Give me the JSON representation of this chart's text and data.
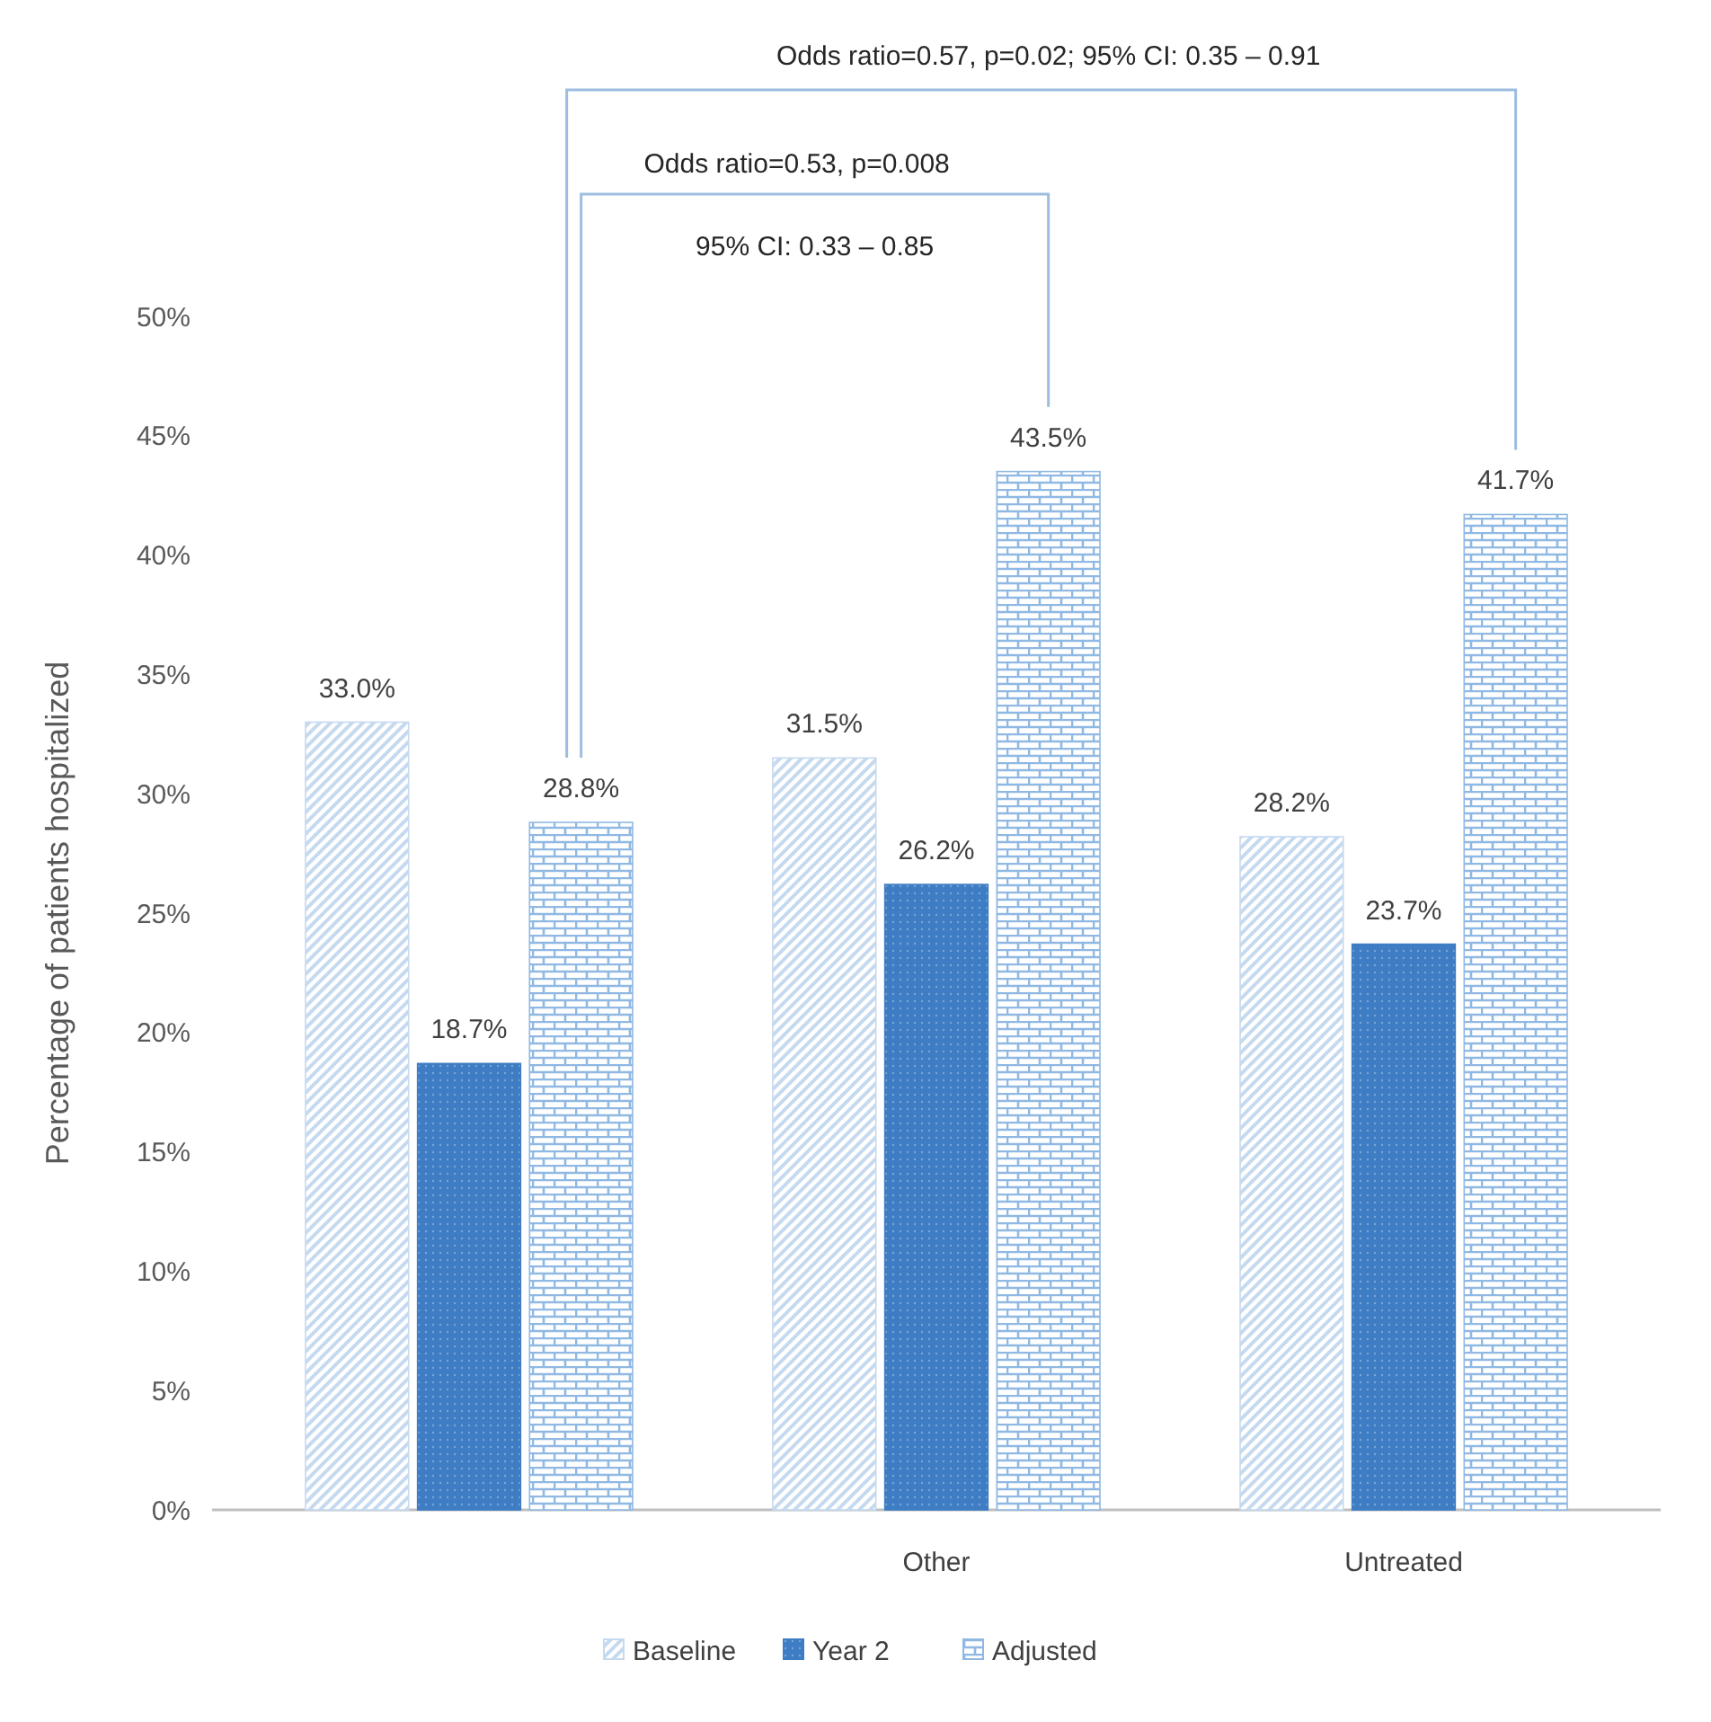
{
  "chart_data": {
    "type": "bar",
    "ylabel": "Percentage of patients hospitalized",
    "categories": [
      null,
      "Other",
      "Untreated"
    ],
    "series": [
      {
        "name": "Baseline",
        "color": "#c5d9ef",
        "values": [
          33.0,
          31.5,
          28.2
        ],
        "value_labels": [
          "33.0%",
          "31.5%",
          "28.2%"
        ]
      },
      {
        "name": "Year 2",
        "color": "#3e7dc4",
        "values": [
          18.7,
          26.2,
          23.7
        ],
        "value_labels": [
          "18.7%",
          "26.2%",
          "23.7%"
        ]
      },
      {
        "name": "Adjusted",
        "color": "#8fb8e3",
        "values": [
          28.8,
          43.5,
          41.7
        ],
        "value_labels": [
          "28.8%",
          "43.5%",
          "41.7%"
        ]
      }
    ],
    "ylim": [
      0,
      50
    ],
    "yticks": [
      {
        "value": 0,
        "label": "0%"
      },
      {
        "value": 5,
        "label": "5%"
      },
      {
        "value": 10,
        "label": "10%"
      },
      {
        "value": 15,
        "label": "15%"
      },
      {
        "value": 20,
        "label": "20%"
      },
      {
        "value": 25,
        "label": "25%"
      },
      {
        "value": 30,
        "label": "30%"
      },
      {
        "value": 35,
        "label": "35%"
      },
      {
        "value": 40,
        "label": "40%"
      },
      {
        "value": 45,
        "label": "45%"
      },
      {
        "value": 50,
        "label": "50%"
      }
    ],
    "annotations": [
      "Odds ratio=0.57, p=0.02; 95% CI: 0.35 – 0.91",
      "Odds ratio=0.53, p=0.008",
      "95% CI: 0.33 – 0.85"
    ],
    "grid": false,
    "legend": "bottom"
  }
}
